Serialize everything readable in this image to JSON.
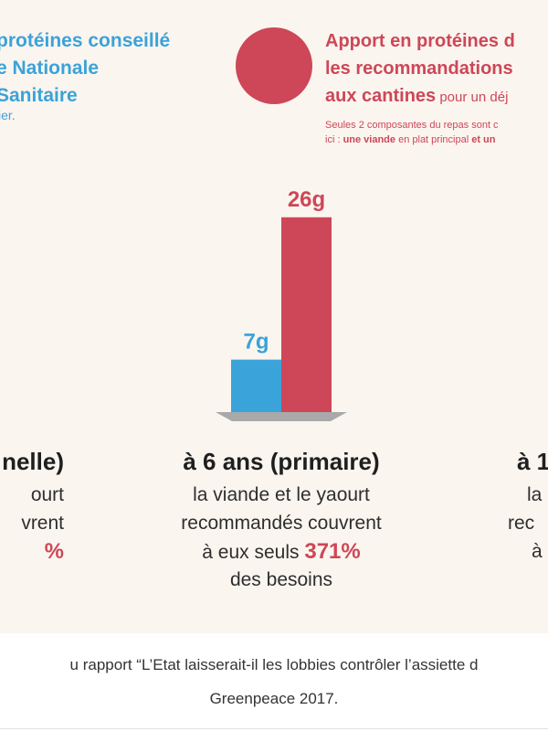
{
  "infographic": {
    "left_header": {
      "lines": [
        "protéines conseillé",
        "e Nationale",
        "Sanitaire"
      ],
      "sub": "ier."
    },
    "right_header": {
      "lines": [
        "Apport en protéines d",
        "les recommandations"
      ],
      "line3_bold": "aux cantines",
      "line3_rest": " pour un déj",
      "note1": "Seules 2 composantes du repas sont c",
      "note2_a": "ici : ",
      "note2_b": "une viande",
      "note2_c": " en plat principal ",
      "note2_d": "et un"
    },
    "columns": {
      "left": {
        "head": "nelle)",
        "lines": [
          "ourt",
          "vrent"
        ],
        "pct": "%"
      },
      "center": {
        "head": "à 6 ans (primaire)",
        "line1": "la viande et le yaourt",
        "line2": "recommandés couvrent",
        "line3_pre": "à eux seuls ",
        "line3_pct": "371%",
        "line4": "des besoins"
      },
      "right": {
        "head": "à 1",
        "lines": [
          "la",
          "rec",
          "à"
        ]
      }
    },
    "colors": {
      "blue": "#3aa3d9",
      "red": "#cd4758",
      "background": "#fbf5ef"
    }
  },
  "chart_data": {
    "type": "bar",
    "categories": [
      "à 6 ans (primaire)"
    ],
    "series": [
      {
        "values": [
          7
        ],
        "color": "#3aa3d9"
      },
      {
        "values": [
          26
        ],
        "color": "#cd4758"
      }
    ],
    "data_labels": [
      "7g",
      "26g"
    ],
    "unit": "g"
  },
  "caption": {
    "line1": "u rapport “L’Etat laisserait-il les lobbies contrôler l’assiette d",
    "line2": "Greenpeace 2017."
  }
}
